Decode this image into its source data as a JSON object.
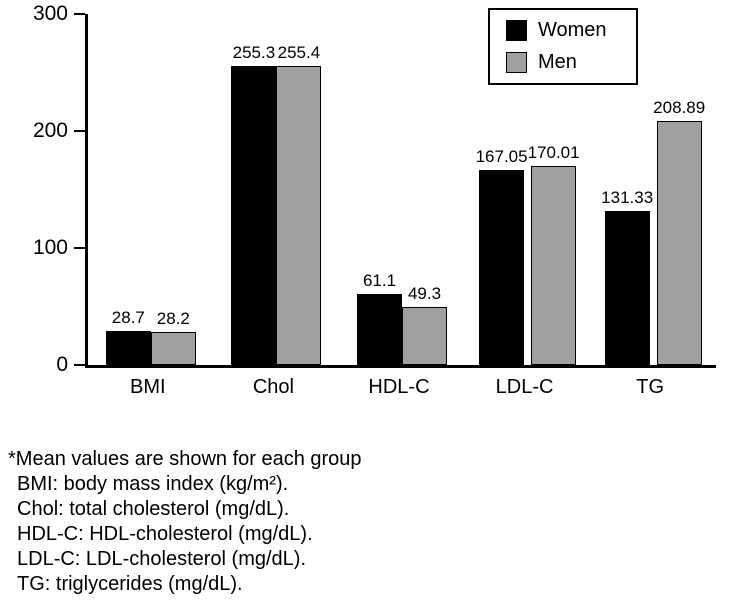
{
  "chart_data": {
    "type": "bar",
    "categories": [
      "BMI",
      "Chol",
      "HDL-C",
      "LDL-C",
      "TG"
    ],
    "series": [
      {
        "name": "Women",
        "color": "#000000",
        "values": [
          28.7,
          255.3,
          61.1,
          167.05,
          131.33
        ]
      },
      {
        "name": "Men",
        "color": "#a0a0a0",
        "values": [
          28.2,
          255.4,
          49.3,
          170.01,
          208.89
        ]
      }
    ],
    "title": "",
    "xlabel": "",
    "ylabel": "",
    "ylim": [
      0,
      300
    ],
    "yticks": [
      0,
      100,
      200,
      300
    ],
    "grid": false,
    "legend_position": "top-right"
  },
  "footnotes": {
    "lines": [
      "*Mean values are shown for each group",
      "BMI: body mass index (kg/m²).",
      "Chol: total cholesterol (mg/dL).",
      "HDL-C: HDL-cholesterol (mg/dL).",
      "LDL-C: LDL-cholesterol (mg/dL).",
      "TG: triglycerides (mg/dL)."
    ]
  }
}
